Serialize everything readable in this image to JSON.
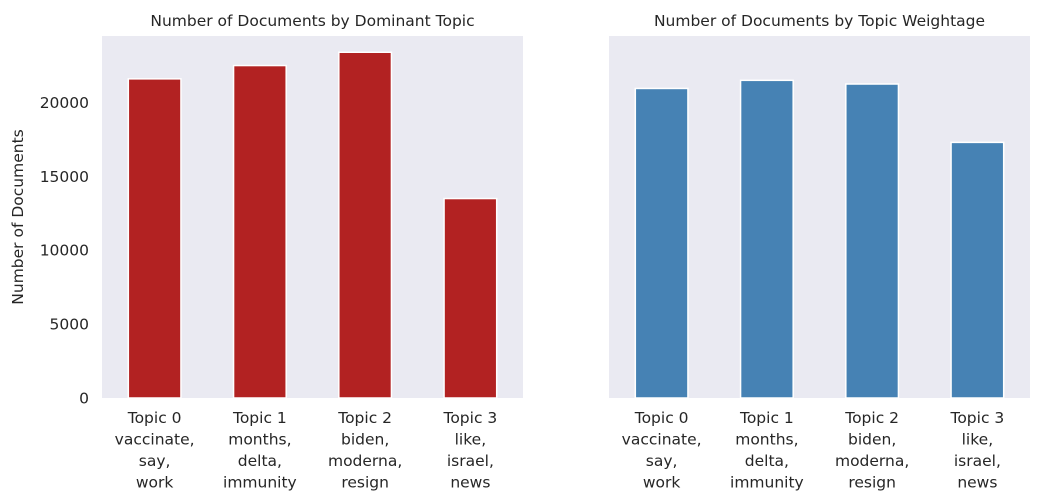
{
  "colors": {
    "panel_bg": "#eaeaf2",
    "text": "#262626"
  },
  "chart_data": [
    {
      "type": "bar",
      "title": "Number of Documents by Dominant Topic",
      "ylabel": "Number of Documents",
      "ylim": [
        0,
        24500
      ],
      "yticks": [
        0,
        5000,
        10000,
        15000,
        20000
      ],
      "grid": false,
      "color": "#b22222",
      "categories": [
        [
          "Topic 0",
          "vaccinate,",
          "say,",
          "work"
        ],
        [
          "Topic 1",
          "months,",
          "delta,",
          "immunity"
        ],
        [
          "Topic 2",
          "biden,",
          "moderna,",
          "resign"
        ],
        [
          "Topic 3",
          "like,",
          "israel,",
          "news"
        ]
      ],
      "values": [
        21600,
        22500,
        23400,
        13500
      ]
    },
    {
      "type": "bar",
      "title": "Number of Documents by Topic Weightage",
      "ylabel": "",
      "ylim": [
        0,
        24500
      ],
      "yticks": [],
      "grid": false,
      "color": "#4682b4",
      "categories": [
        [
          "Topic 0",
          "vaccinate,",
          "say,",
          "work"
        ],
        [
          "Topic 1",
          "months,",
          "delta,",
          "immunity"
        ],
        [
          "Topic 2",
          "biden,",
          "moderna,",
          "resign"
        ],
        [
          "Topic 3",
          "like,",
          "israel,",
          "news"
        ]
      ],
      "values": [
        20950,
        21500,
        21250,
        17300
      ]
    }
  ]
}
